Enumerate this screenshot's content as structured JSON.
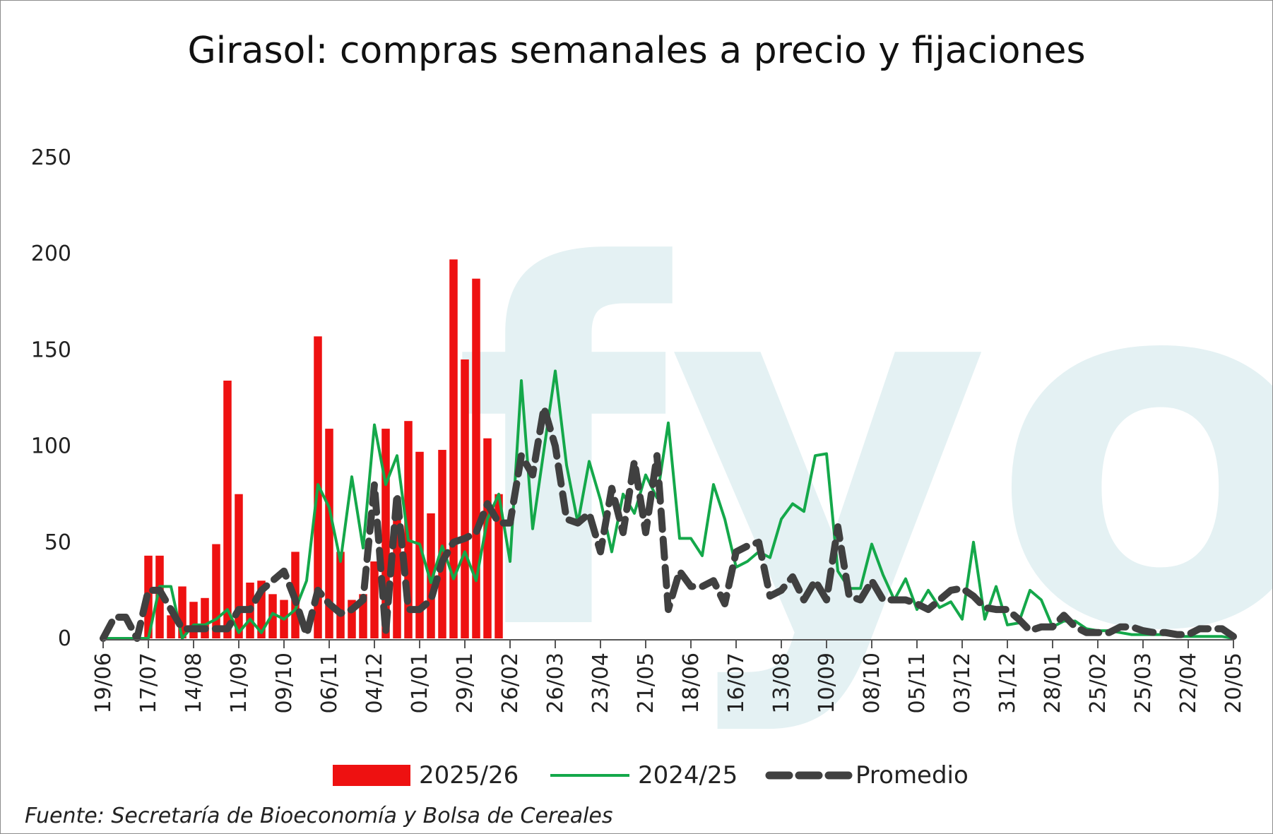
{
  "chart_data": {
    "type": "bar",
    "title": "Girasol: compras semanales a precio y fijaciones",
    "xlabel": "",
    "ylabel": "",
    "ylim": [
      0,
      250
    ],
    "yticks": [
      "0",
      "50",
      "100",
      "150",
      "200",
      "250"
    ],
    "x_tick_labels": [
      "19/06",
      "17/07",
      "14/08",
      "11/09",
      "09/10",
      "06/11",
      "04/12",
      "01/01",
      "29/01",
      "26/02",
      "26/03",
      "23/04",
      "21/05",
      "18/06",
      "16/07",
      "13/08",
      "10/09",
      "08/10",
      "05/11",
      "03/12",
      "31/12",
      "28/01",
      "25/02",
      "25/03",
      "22/04",
      "20/05"
    ],
    "n_weeks": 101,
    "grid": false,
    "legend_position": "bottom",
    "series": [
      {
        "name": "2025/26",
        "type": "bar",
        "color": "#ee1111",
        "values": [
          0,
          0,
          0,
          0,
          43,
          43,
          12,
          27,
          19,
          21,
          49,
          134,
          75,
          29,
          30,
          23,
          20,
          45,
          0,
          157,
          109,
          45,
          20,
          23,
          40,
          109,
          68,
          113,
          97,
          65,
          98,
          197,
          145,
          187,
          104,
          75
        ]
      },
      {
        "name": "2024/25",
        "type": "line",
        "color": "#14a84a",
        "values": [
          0,
          0,
          0,
          0,
          0,
          27,
          27,
          0,
          7,
          7,
          10,
          15,
          3,
          10,
          3,
          13,
          10,
          15,
          30,
          80,
          68,
          40,
          84,
          47,
          111,
          80,
          95,
          51,
          49,
          29,
          48,
          31,
          45,
          30,
          62,
          75,
          40,
          134,
          57,
          98,
          139,
          90,
          60,
          92,
          72,
          45,
          75,
          65,
          85,
          73,
          112,
          52,
          52,
          43,
          80,
          62,
          37,
          40,
          45,
          42,
          62,
          70,
          66,
          95,
          96,
          35,
          26,
          26,
          49,
          33,
          20,
          31,
          15,
          25,
          16,
          19,
          10,
          50,
          10,
          27,
          7,
          8,
          25,
          20,
          6,
          9,
          9,
          5,
          4,
          4,
          3,
          2,
          2,
          2,
          2,
          1,
          1,
          1,
          1,
          1,
          0
        ]
      },
      {
        "name": "Promedio",
        "type": "line",
        "dash": true,
        "color": "#404040",
        "values": [
          0,
          11,
          11,
          0,
          25,
          25,
          15,
          5,
          5,
          5,
          5,
          5,
          15,
          15,
          25,
          30,
          35,
          20,
          2,
          25,
          18,
          13,
          15,
          20,
          80,
          3,
          75,
          15,
          15,
          20,
          40,
          50,
          52,
          55,
          70,
          60,
          60,
          95,
          85,
          120,
          100,
          62,
          60,
          65,
          45,
          78,
          55,
          92,
          55,
          95,
          15,
          35,
          27,
          27,
          30,
          18,
          45,
          48,
          50,
          22,
          25,
          32,
          20,
          30,
          20,
          58,
          22,
          20,
          30,
          20,
          20,
          20,
          18,
          15,
          20,
          25,
          26,
          22,
          16,
          15,
          15,
          10,
          4,
          6,
          6,
          12,
          6,
          3,
          3,
          3,
          6,
          6,
          4,
          3,
          3,
          2,
          2,
          5,
          5,
          5,
          1
        ]
      }
    ]
  },
  "source": "Fuente: Secretaría de Bioeconomía y Bolsa de Cereales",
  "watermark": "fyo",
  "watermark_color": "#e4f1f3"
}
